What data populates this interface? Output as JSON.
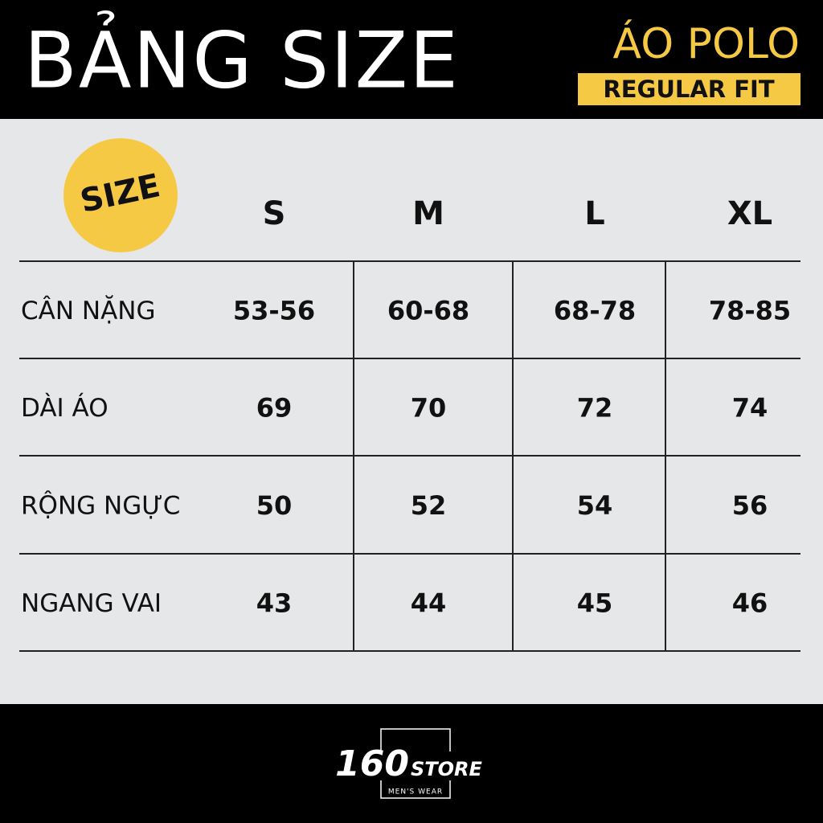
{
  "header": {
    "title": "BẢNG SIZE",
    "product": "ÁO POLO",
    "fit": "REGULAR FIT"
  },
  "table": {
    "corner": "SIZE",
    "columns": [
      "S",
      "M",
      "L",
      "XL"
    ],
    "rows": [
      [
        "CÂN NẶNG",
        "53-56",
        "60-68",
        "68-78",
        "78-85"
      ],
      [
        "DÀI ÁO",
        69,
        70,
        72,
        74
      ],
      [
        "RỘNG NGỰC",
        50,
        52,
        54,
        56
      ],
      [
        "NGANG VAI",
        43,
        44,
        45,
        46
      ]
    ]
  },
  "footer": {
    "brand_number": "160",
    "brand_name": "STORE",
    "tagline": "MEN'S WEAR"
  }
}
